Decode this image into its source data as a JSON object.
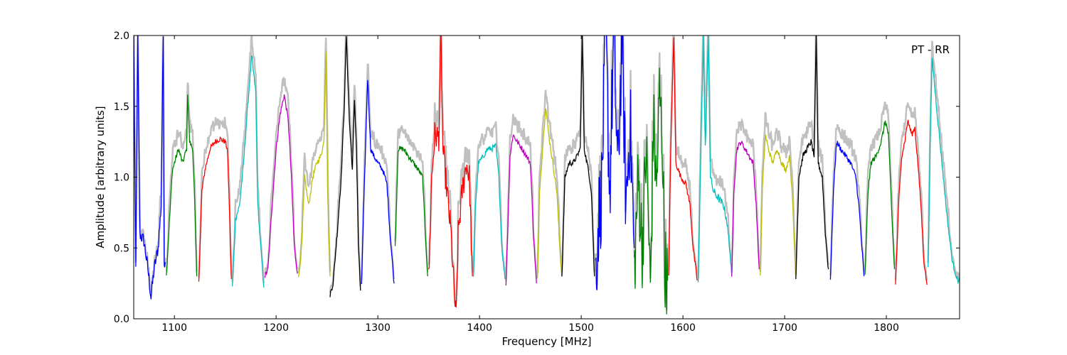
{
  "chart_data": {
    "type": "line",
    "title": "",
    "annotation": "PT - RR",
    "xlabel": "Frequency [MHz]",
    "ylabel": "Amplitude [arbitrary units]",
    "xlim": [
      1060,
      1872
    ],
    "ylim": [
      0,
      2.0
    ],
    "xticks": [
      1100,
      1200,
      1300,
      1400,
      1500,
      1600,
      1700,
      1800
    ],
    "xtick_labels": [
      "1100",
      "1200",
      "1300",
      "1400",
      "1500",
      "1600",
      "1700",
      "1800"
    ],
    "yticks": [
      0.0,
      0.5,
      1.0,
      1.5,
      2.0
    ],
    "ytick_labels": [
      "0.0",
      "0.5",
      "1.0",
      "1.5",
      "2.0"
    ],
    "grid": false,
    "background_series_color": "#c0c0c0",
    "series": [
      {
        "color": "#0000ff",
        "noise": 0.05,
        "points": [
          [
            1060,
            2.0
          ],
          [
            1062,
            0.35
          ],
          [
            1064,
            2.0
          ],
          [
            1066,
            0.6
          ],
          [
            1070,
            0.55
          ],
          [
            1074,
            0.35
          ],
          [
            1077,
            0.15
          ],
          [
            1080,
            0.35
          ],
          [
            1084,
            0.5
          ],
          [
            1087,
            0.8
          ],
          [
            1089,
            2.0
          ],
          [
            1090,
            0.4
          ],
          [
            1091,
            0.4
          ]
        ]
      },
      {
        "color": "#008000",
        "noise": 0.02,
        "points": [
          [
            1092,
            0.3
          ],
          [
            1096,
            0.8
          ],
          [
            1098,
            1.05
          ],
          [
            1100,
            1.1
          ],
          [
            1104,
            1.2
          ],
          [
            1108,
            1.1
          ],
          [
            1112,
            1.2
          ],
          [
            1113,
            1.6
          ],
          [
            1115,
            1.25
          ],
          [
            1118,
            1.2
          ],
          [
            1120,
            0.8
          ],
          [
            1122,
            0.3
          ]
        ]
      },
      {
        "color": "#ff0000",
        "noise": 0.02,
        "points": [
          [
            1124,
            0.27
          ],
          [
            1127,
            0.9
          ],
          [
            1130,
            1.05
          ],
          [
            1135,
            1.2
          ],
          [
            1140,
            1.25
          ],
          [
            1145,
            1.27
          ],
          [
            1150,
            1.25
          ],
          [
            1152,
            1.2
          ],
          [
            1154,
            0.8
          ],
          [
            1156,
            0.28
          ]
        ]
      },
      {
        "color": "#00bfbf",
        "noise": 0.02,
        "points": [
          [
            1157,
            0.22
          ],
          [
            1160,
            0.7
          ],
          [
            1164,
            0.8
          ],
          [
            1168,
            1.1
          ],
          [
            1172,
            1.5
          ],
          [
            1176,
            1.85
          ],
          [
            1180,
            1.6
          ],
          [
            1182,
            0.8
          ],
          [
            1185,
            0.5
          ],
          [
            1188,
            0.22
          ]
        ]
      },
      {
        "color": "#bf00bf",
        "noise": 0.02,
        "points": [
          [
            1189,
            0.3
          ],
          [
            1192,
            0.35
          ],
          [
            1196,
            0.8
          ],
          [
            1200,
            1.2
          ],
          [
            1204,
            1.45
          ],
          [
            1208,
            1.58
          ],
          [
            1212,
            1.4
          ],
          [
            1215,
            1.0
          ],
          [
            1218,
            0.5
          ],
          [
            1221,
            0.32
          ]
        ]
      },
      {
        "color": "#bfbf00",
        "noise": 0.02,
        "points": [
          [
            1222,
            0.28
          ],
          [
            1225,
            0.5
          ],
          [
            1228,
            1.0
          ],
          [
            1232,
            0.8
          ],
          [
            1236,
            1.0
          ],
          [
            1240,
            1.1
          ],
          [
            1244,
            1.15
          ],
          [
            1247,
            1.25
          ],
          [
            1249,
            1.9
          ],
          [
            1251,
            0.8
          ],
          [
            1253,
            0.3
          ]
        ]
      },
      {
        "color": "#000000",
        "noise": 0.02,
        "points": [
          [
            1253,
            0.17
          ],
          [
            1256,
            0.25
          ],
          [
            1260,
            0.6
          ],
          [
            1264,
            1.0
          ],
          [
            1267,
            1.5
          ],
          [
            1269,
            2.0
          ],
          [
            1272,
            1.4
          ],
          [
            1275,
            1.05
          ],
          [
            1277,
            1.55
          ],
          [
            1279,
            1.2
          ],
          [
            1281,
            0.5
          ],
          [
            1283,
            0.2
          ]
        ]
      },
      {
        "color": "#0000ff",
        "noise": 0.02,
        "points": [
          [
            1284,
            0.25
          ],
          [
            1287,
            1.0
          ],
          [
            1290,
            1.7
          ],
          [
            1293,
            1.2
          ],
          [
            1296,
            1.15
          ],
          [
            1300,
            1.1
          ],
          [
            1305,
            1.05
          ],
          [
            1309,
            0.95
          ],
          [
            1312,
            0.6
          ],
          [
            1316,
            0.25
          ]
        ]
      },
      {
        "color": "#008000",
        "noise": 0.02,
        "points": [
          [
            1317,
            0.5
          ],
          [
            1320,
            1.2
          ],
          [
            1325,
            1.2
          ],
          [
            1330,
            1.15
          ],
          [
            1335,
            1.1
          ],
          [
            1340,
            1.05
          ],
          [
            1344,
            1.0
          ],
          [
            1346,
            0.7
          ],
          [
            1349,
            0.3
          ]
        ]
      },
      {
        "color": "#ff0000",
        "noise": 0.1,
        "points": [
          [
            1350,
            0.27
          ],
          [
            1353,
            1.0
          ],
          [
            1356,
            1.3
          ],
          [
            1360,
            1.28
          ],
          [
            1362,
            2.0
          ],
          [
            1364,
            1.2
          ],
          [
            1368,
            0.9
          ],
          [
            1372,
            0.6
          ],
          [
            1375,
            0.2
          ],
          [
            1377,
            0.0
          ],
          [
            1379,
            0.6
          ],
          [
            1383,
            0.9
          ],
          [
            1387,
            1.1
          ],
          [
            1390,
            1.0
          ],
          [
            1393,
            0.3
          ]
        ]
      },
      {
        "color": "#00bfbf",
        "noise": 0.02,
        "points": [
          [
            1394,
            0.28
          ],
          [
            1396,
            0.8
          ],
          [
            1399,
            1.1
          ],
          [
            1404,
            1.15
          ],
          [
            1408,
            1.2
          ],
          [
            1412,
            1.2
          ],
          [
            1416,
            1.22
          ],
          [
            1419,
            1.0
          ],
          [
            1422,
            0.5
          ],
          [
            1425,
            0.28
          ]
        ]
      },
      {
        "color": "#bf00bf",
        "noise": 0.02,
        "points": [
          [
            1426,
            0.25
          ],
          [
            1428,
            0.7
          ],
          [
            1430,
            1.15
          ],
          [
            1433,
            1.3
          ],
          [
            1437,
            1.25
          ],
          [
            1442,
            1.2
          ],
          [
            1446,
            1.15
          ],
          [
            1450,
            1.1
          ],
          [
            1453,
            0.6
          ],
          [
            1456,
            0.25
          ]
        ]
      },
      {
        "color": "#bfbf00",
        "noise": 0.02,
        "points": [
          [
            1457,
            0.28
          ],
          [
            1459,
            0.9
          ],
          [
            1462,
            1.2
          ],
          [
            1465,
            1.5
          ],
          [
            1468,
            1.3
          ],
          [
            1472,
            1.1
          ],
          [
            1476,
            0.9
          ],
          [
            1479,
            0.5
          ],
          [
            1481,
            0.3
          ]
        ]
      },
      {
        "color": "#000000",
        "noise": 0.02,
        "points": [
          [
            1481,
            0.3
          ],
          [
            1484,
            1.0
          ],
          [
            1488,
            1.1
          ],
          [
            1492,
            1.1
          ],
          [
            1496,
            1.15
          ],
          [
            1499,
            1.2
          ],
          [
            1501,
            2.0
          ],
          [
            1503,
            1.2
          ],
          [
            1507,
            1.05
          ],
          [
            1510,
            0.9
          ],
          [
            1513,
            0.3
          ]
        ]
      },
      {
        "color": "#0000ff",
        "noise": 0.35,
        "points": [
          [
            1514,
            0.3
          ],
          [
            1517,
            0.7
          ],
          [
            1520,
            0.9
          ],
          [
            1524,
            2.0
          ],
          [
            1528,
            0.9
          ],
          [
            1532,
            2.0
          ],
          [
            1536,
            1.0
          ],
          [
            1540,
            2.0
          ],
          [
            1544,
            0.8
          ],
          [
            1548,
            1.4
          ],
          [
            1552,
            0.5
          ]
        ]
      },
      {
        "color": "#008000",
        "noise": 0.3,
        "points": [
          [
            1552,
            0.3
          ],
          [
            1556,
            1.0
          ],
          [
            1560,
            0.5
          ],
          [
            1564,
            1.2
          ],
          [
            1568,
            0.2
          ],
          [
            1571,
            1.4
          ],
          [
            1574,
            0.9
          ],
          [
            1577,
            1.6
          ],
          [
            1580,
            1.2
          ],
          [
            1582,
            0.4
          ],
          [
            1585,
            0.27
          ]
        ]
      },
      {
        "color": "#ff0000",
        "noise": 0.02,
        "points": [
          [
            1586,
            0.3
          ],
          [
            1588,
            1.2
          ],
          [
            1591,
            2.0
          ],
          [
            1593,
            1.1
          ],
          [
            1598,
            1.0
          ],
          [
            1603,
            0.95
          ],
          [
            1607,
            0.8
          ],
          [
            1610,
            0.5
          ],
          [
            1614,
            0.27
          ]
        ]
      },
      {
        "color": "#00bfbf",
        "noise": 0.03,
        "points": [
          [
            1615,
            0.27
          ],
          [
            1618,
            1.3
          ],
          [
            1620,
            2.0
          ],
          [
            1622,
            1.2
          ],
          [
            1625,
            2.0
          ],
          [
            1627,
            1.0
          ],
          [
            1630,
            0.9
          ],
          [
            1635,
            0.85
          ],
          [
            1640,
            0.8
          ],
          [
            1643,
            0.7
          ],
          [
            1646,
            0.5
          ],
          [
            1648,
            0.3
          ]
        ]
      },
      {
        "color": "#bf00bf",
        "noise": 0.02,
        "points": [
          [
            1648,
            0.28
          ],
          [
            1650,
            0.9
          ],
          [
            1653,
            1.2
          ],
          [
            1657,
            1.25
          ],
          [
            1661,
            1.2
          ],
          [
            1665,
            1.15
          ],
          [
            1669,
            1.1
          ],
          [
            1672,
            0.8
          ],
          [
            1675,
            0.35
          ]
        ]
      },
      {
        "color": "#bfbf00",
        "noise": 0.02,
        "points": [
          [
            1676,
            0.3
          ],
          [
            1678,
            0.9
          ],
          [
            1681,
            1.3
          ],
          [
            1684,
            1.2
          ],
          [
            1688,
            1.1
          ],
          [
            1693,
            1.2
          ],
          [
            1697,
            1.1
          ],
          [
            1701,
            1.05
          ],
          [
            1705,
            1.15
          ],
          [
            1708,
            0.8
          ],
          [
            1711,
            0.3
          ]
        ]
      },
      {
        "color": "#000000",
        "noise": 0.02,
        "points": [
          [
            1711,
            0.3
          ],
          [
            1714,
            1.0
          ],
          [
            1718,
            1.15
          ],
          [
            1722,
            1.2
          ],
          [
            1726,
            1.25
          ],
          [
            1729,
            1.15
          ],
          [
            1731,
            2.0
          ],
          [
            1733,
            1.1
          ],
          [
            1737,
            1.0
          ],
          [
            1740,
            0.6
          ],
          [
            1743,
            0.35
          ]
        ]
      },
      {
        "color": "#0000ff",
        "noise": 0.02,
        "points": [
          [
            1745,
            0.28
          ],
          [
            1748,
            0.9
          ],
          [
            1751,
            1.25
          ],
          [
            1755,
            1.2
          ],
          [
            1760,
            1.15
          ],
          [
            1765,
            1.1
          ],
          [
            1770,
            1.0
          ],
          [
            1773,
            0.8
          ],
          [
            1776,
            0.5
          ],
          [
            1778,
            0.3
          ]
        ]
      },
      {
        "color": "#008000",
        "noise": 0.02,
        "points": [
          [
            1779,
            0.3
          ],
          [
            1782,
            0.9
          ],
          [
            1785,
            1.1
          ],
          [
            1790,
            1.15
          ],
          [
            1795,
            1.25
          ],
          [
            1799,
            1.4
          ],
          [
            1802,
            1.3
          ],
          [
            1805,
            0.8
          ],
          [
            1808,
            0.35
          ]
        ]
      },
      {
        "color": "#ff0000",
        "noise": 0.02,
        "points": [
          [
            1809,
            0.24
          ],
          [
            1812,
            0.8
          ],
          [
            1815,
            1.15
          ],
          [
            1818,
            1.25
          ],
          [
            1821,
            1.4
          ],
          [
            1825,
            1.3
          ],
          [
            1828,
            1.35
          ],
          [
            1831,
            1.1
          ],
          [
            1834,
            0.8
          ],
          [
            1837,
            0.4
          ],
          [
            1840,
            0.24
          ]
        ]
      },
      {
        "color": "#00bfbf",
        "noise": 0.02,
        "points": [
          [
            1841,
            0.35
          ],
          [
            1843,
            1.2
          ],
          [
            1845,
            1.85
          ],
          [
            1848,
            1.6
          ],
          [
            1852,
            1.3
          ],
          [
            1856,
            1.0
          ],
          [
            1860,
            0.7
          ],
          [
            1865,
            0.4
          ],
          [
            1870,
            0.27
          ],
          [
            1872,
            0.28
          ]
        ]
      }
    ]
  }
}
